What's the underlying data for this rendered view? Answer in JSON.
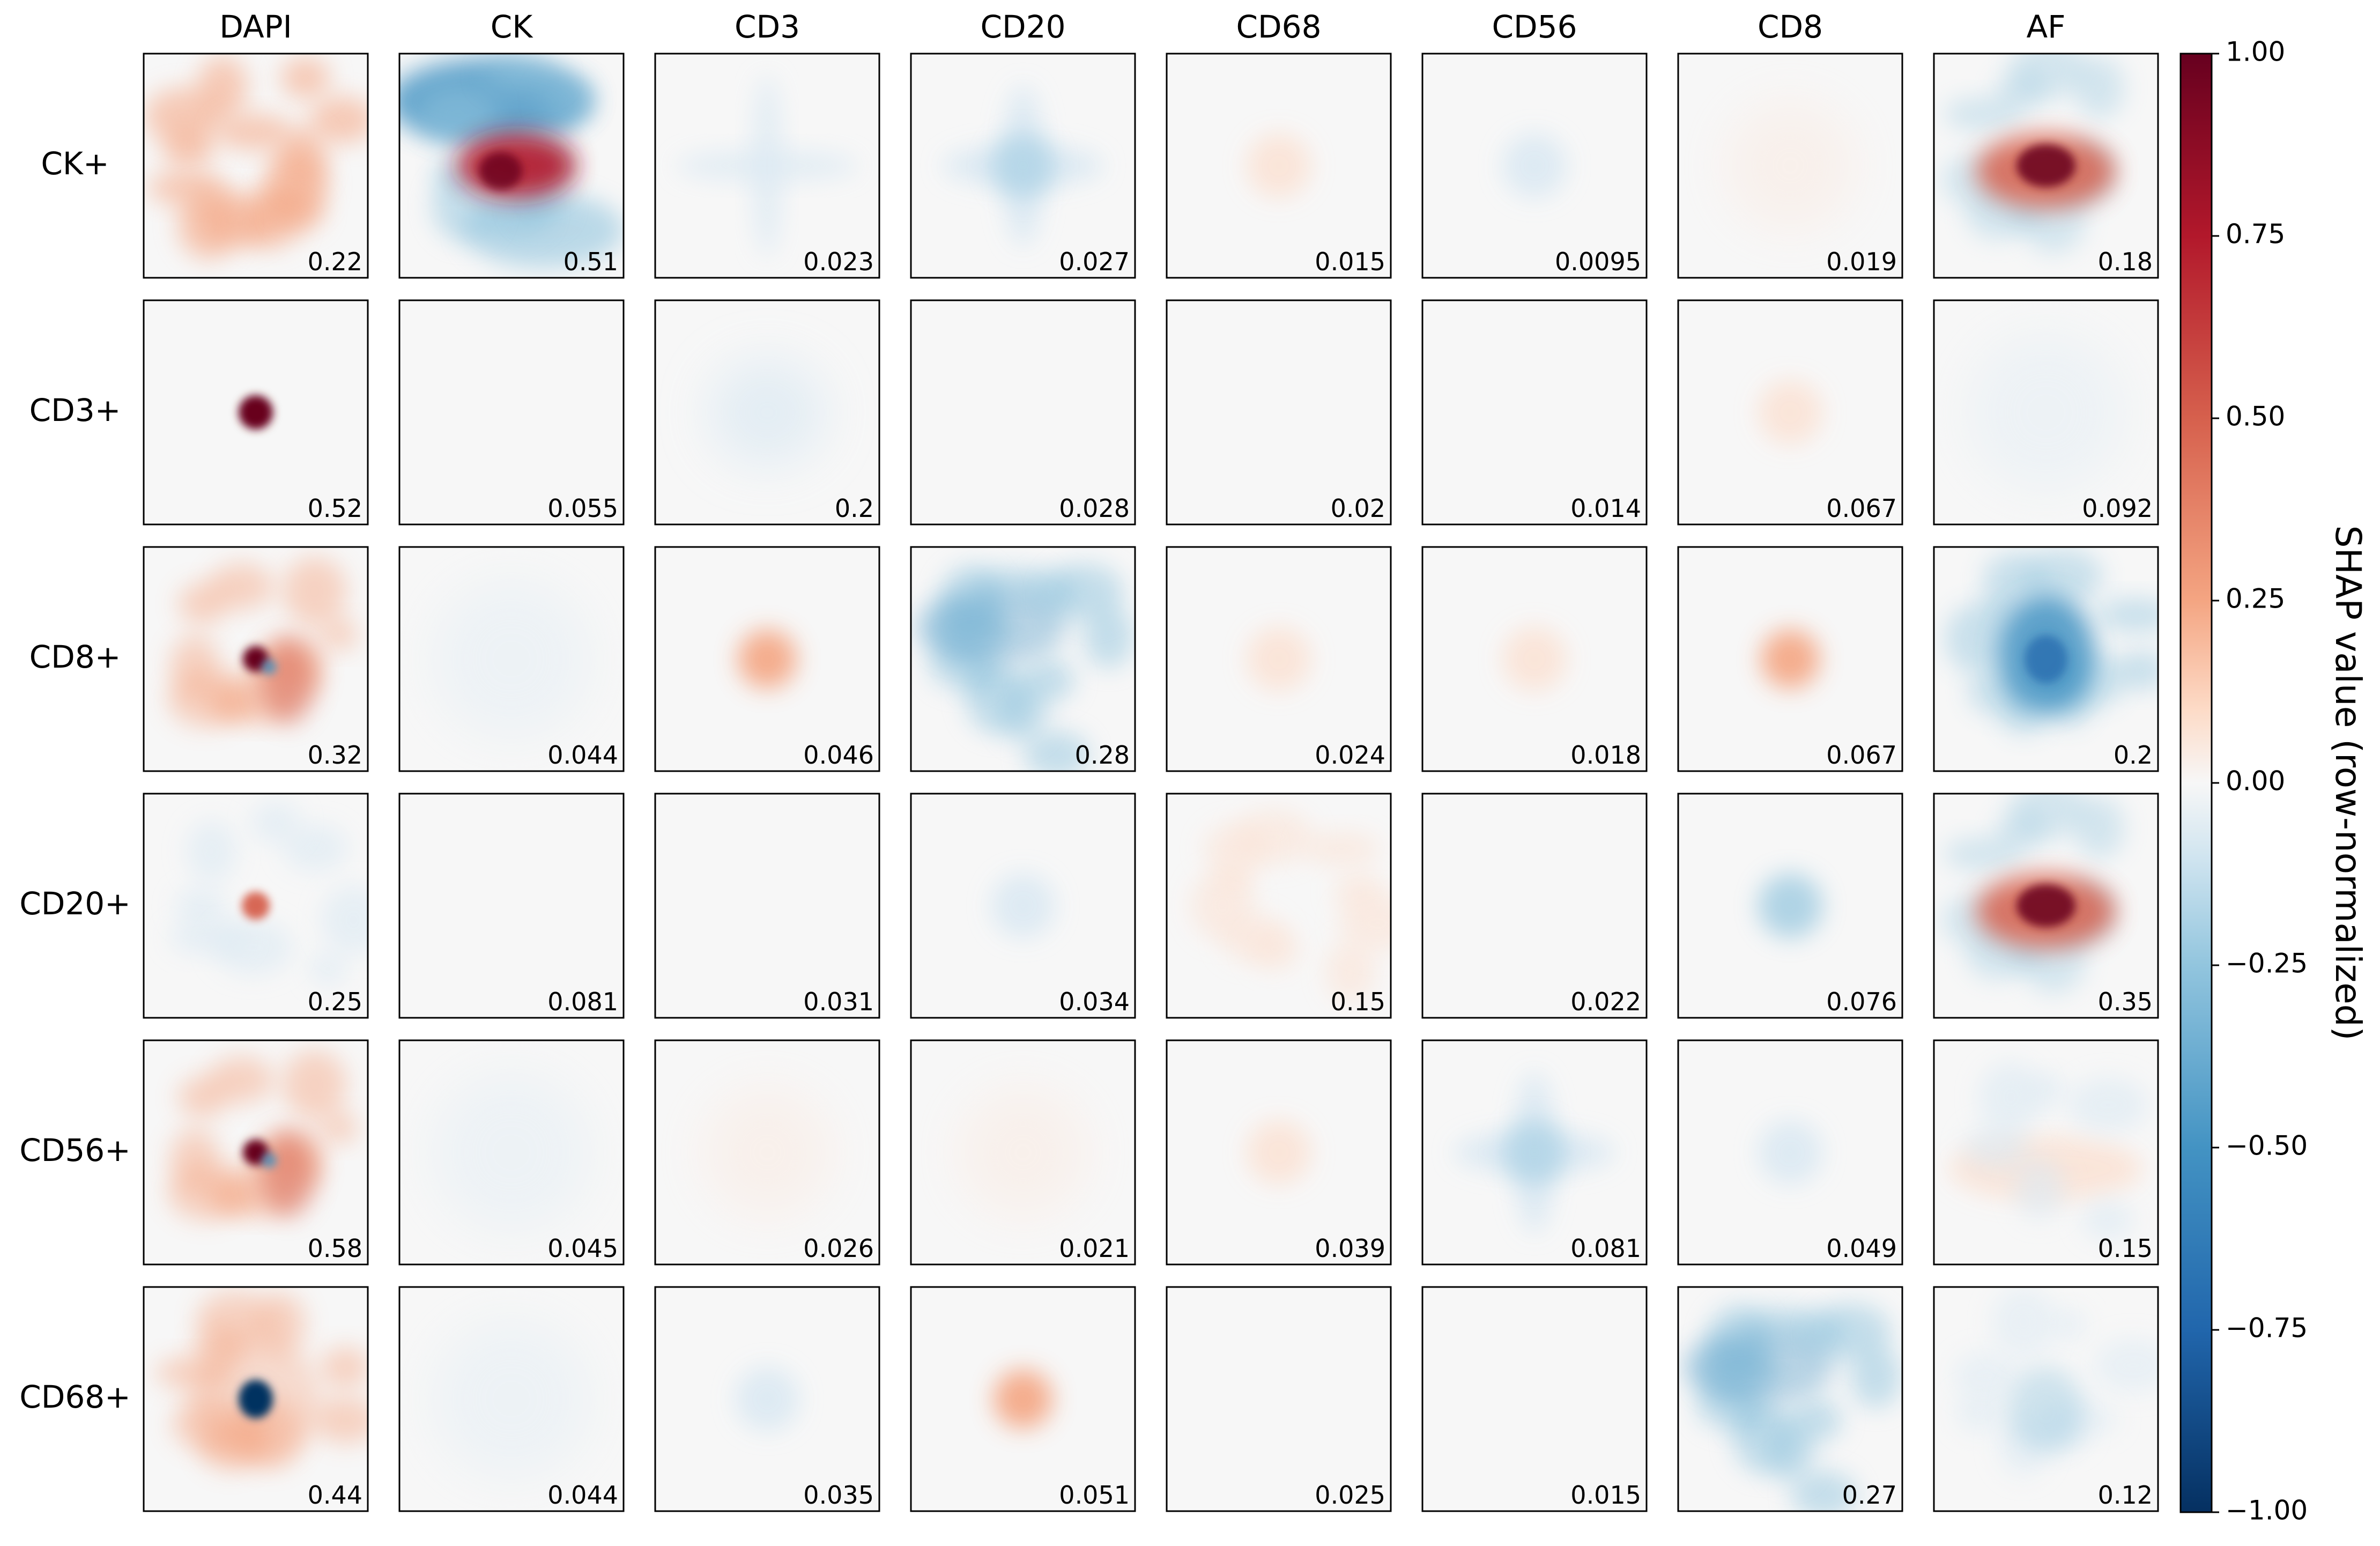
{
  "chart_data": {
    "type": "heatmap",
    "layout": "small-multiples grid of SHAP attribution maps",
    "columns": [
      "DAPI",
      "CK",
      "CD3",
      "CD20",
      "CD68",
      "CD56",
      "CD8",
      "AF"
    ],
    "rows": [
      "CK+",
      "CD3+",
      "CD8+",
      "CD20+",
      "CD56+",
      "CD68+"
    ],
    "values": [
      [
        "0.22",
        "0.51",
        "0.023",
        "0.027",
        "0.015",
        "0.0095",
        "0.019",
        "0.18"
      ],
      [
        "0.52",
        "0.055",
        "0.2",
        "0.028",
        "0.02",
        "0.014",
        "0.067",
        "0.092"
      ],
      [
        "0.32",
        "0.044",
        "0.046",
        "0.28",
        "0.024",
        "0.018",
        "0.067",
        "0.2"
      ],
      [
        "0.25",
        "0.081",
        "0.031",
        "0.034",
        "0.15",
        "0.022",
        "0.076",
        "0.35"
      ],
      [
        "0.58",
        "0.045",
        "0.026",
        "0.021",
        "0.039",
        "0.081",
        "0.049",
        "0.15"
      ],
      [
        "0.44",
        "0.044",
        "0.035",
        "0.051",
        "0.025",
        "0.015",
        "0.27",
        "0.12"
      ]
    ],
    "patterns": [
      [
        "patchy_pos",
        "ck",
        "faint_cross_neg",
        "cross_neg",
        "blob_pos_faint",
        "blob_neg_faint",
        "faint_pos",
        "af_pos"
      ],
      [
        "dot_pos",
        "blank",
        "ring_neg_faint",
        "blank",
        "blank",
        "blank",
        "blob_pos_faint",
        "faint_neg"
      ],
      [
        "dot_pos_patchy",
        "faint_neg",
        "blob_pos",
        "patchy_neg",
        "blob_pos_faint",
        "blob_pos_faint",
        "blob_pos",
        "af_neg"
      ],
      [
        "dot_pos_small_neg_bg",
        "blank",
        "blank",
        "blob_neg_faint",
        "speckle",
        "blank",
        "blob_neg",
        "af_pos"
      ],
      [
        "dot_pos_patchy",
        "faint_neg",
        "faint_pos",
        "faint_pos",
        "blob_pos_faint",
        "cross_neg",
        "blob_neg_faint",
        "band_pos"
      ],
      [
        "dot_neg_ring_pos",
        "faint_neg",
        "blob_neg_faint",
        "blob_pos",
        "blank",
        "blank",
        "patchy_neg",
        "af_neg_faint"
      ]
    ],
    "colorbar": {
      "label": "SHAP value (row-normalized)",
      "colormap": "RdBu_r",
      "range": [
        -1,
        1
      ],
      "ticks": [
        "1.00",
        "0.75",
        "0.50",
        "0.25",
        "0.00",
        "−0.25",
        "−0.50",
        "−0.75",
        "−1.00"
      ]
    },
    "colors": {
      "neutral": "#f7f7f7",
      "positive_max": "#67001f",
      "negative_max": "#053061"
    }
  }
}
